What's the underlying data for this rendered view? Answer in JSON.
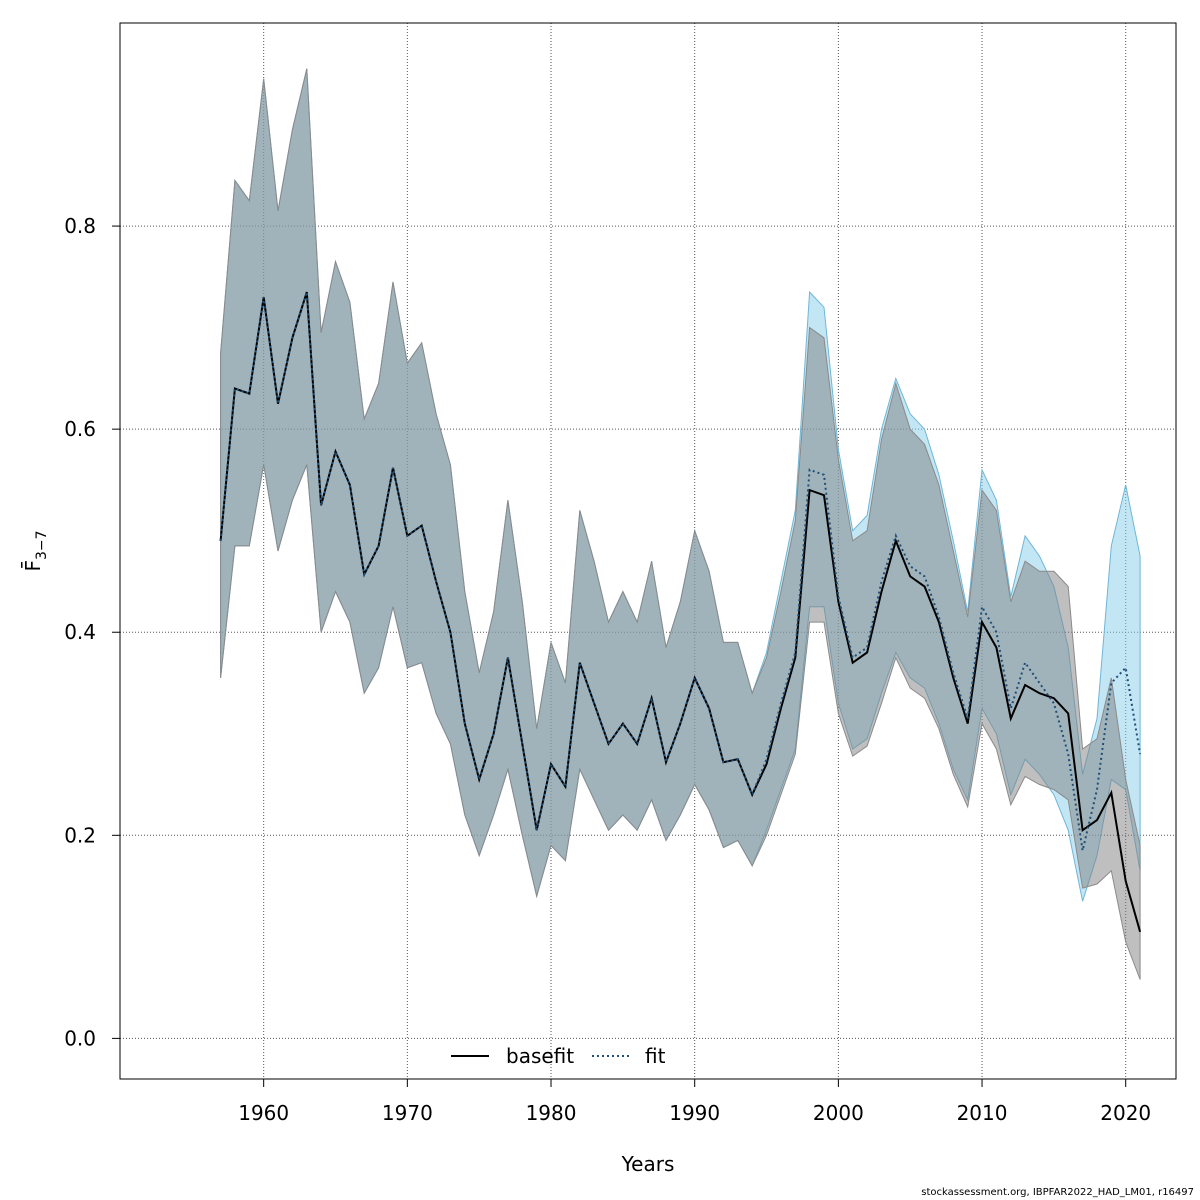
{
  "footer": "stockassessment.org, IBPFAR2022_HAD_LM01, r16497",
  "colors": {
    "basefit_line": "#000000",
    "basefit_band": "#7f7f7f",
    "fit_line": "#1f4e79",
    "fit_band": "#87ceeb",
    "grid": "#555555"
  },
  "chart_data": {
    "type": "line",
    "xlabel": "Years",
    "ylabel": "F̄",
    "ylabel_subscript": "3−7",
    "xlim": [
      1950,
      2023.5
    ],
    "ylim": [
      -0.04,
      1.0
    ],
    "x_ticks": [
      1960,
      1970,
      1980,
      1990,
      2000,
      2010,
      2020
    ],
    "y_ticks": [
      0.0,
      0.2,
      0.4,
      0.6,
      0.8
    ],
    "y_tick_labels": [
      "0.0",
      "0.2",
      "0.4",
      "0.6",
      "0.8"
    ],
    "grid": true,
    "legend": {
      "placement": "bottom-center",
      "entries": [
        "basefit",
        "fit"
      ]
    },
    "x": [
      1957,
      1958,
      1959,
      1960,
      1961,
      1962,
      1963,
      1964,
      1965,
      1966,
      1967,
      1968,
      1969,
      1970,
      1971,
      1972,
      1973,
      1974,
      1975,
      1976,
      1977,
      1978,
      1979,
      1980,
      1981,
      1982,
      1983,
      1984,
      1985,
      1986,
      1987,
      1988,
      1989,
      1990,
      1991,
      1992,
      1993,
      1994,
      1995,
      1996,
      1997,
      1998,
      1999,
      2000,
      2001,
      2002,
      2003,
      2004,
      2005,
      2006,
      2007,
      2008,
      2009,
      2010,
      2011,
      2012,
      2013,
      2014,
      2015,
      2016,
      2017,
      2018,
      2019,
      2020,
      2021
    ],
    "series": [
      {
        "name": "basefit",
        "style": "solid",
        "values": [
          0.49,
          0.64,
          0.635,
          0.73,
          0.625,
          0.69,
          0.735,
          0.525,
          0.578,
          0.545,
          0.457,
          0.485,
          0.562,
          0.495,
          0.505,
          0.45,
          0.4,
          0.31,
          0.255,
          0.3,
          0.375,
          0.29,
          0.205,
          0.27,
          0.248,
          0.37,
          0.33,
          0.29,
          0.31,
          0.29,
          0.335,
          0.272,
          0.31,
          0.355,
          0.325,
          0.272,
          0.275,
          0.24,
          0.27,
          0.325,
          0.375,
          0.54,
          0.535,
          0.43,
          0.37,
          0.38,
          0.44,
          0.49,
          0.455,
          0.445,
          0.41,
          0.355,
          0.31,
          0.41,
          0.385,
          0.315,
          0.348,
          0.34,
          0.335,
          0.32,
          0.205,
          0.215,
          0.242,
          0.155,
          0.105
        ],
        "lower": [
          0.355,
          0.485,
          0.485,
          0.565,
          0.48,
          0.53,
          0.565,
          0.4,
          0.44,
          0.41,
          0.34,
          0.365,
          0.425,
          0.365,
          0.37,
          0.32,
          0.29,
          0.22,
          0.18,
          0.22,
          0.265,
          0.2,
          0.14,
          0.19,
          0.175,
          0.265,
          0.235,
          0.205,
          0.22,
          0.205,
          0.235,
          0.195,
          0.22,
          0.25,
          0.225,
          0.188,
          0.195,
          0.17,
          0.2,
          0.24,
          0.28,
          0.41,
          0.41,
          0.32,
          0.278,
          0.288,
          0.33,
          0.375,
          0.345,
          0.335,
          0.305,
          0.26,
          0.228,
          0.31,
          0.285,
          0.23,
          0.258,
          0.25,
          0.245,
          0.235,
          0.148,
          0.152,
          0.165,
          0.095,
          0.058
        ],
        "upper": [
          0.675,
          0.845,
          0.825,
          0.945,
          0.815,
          0.895,
          0.955,
          0.695,
          0.765,
          0.725,
          0.61,
          0.645,
          0.745,
          0.665,
          0.685,
          0.615,
          0.565,
          0.44,
          0.36,
          0.42,
          0.53,
          0.43,
          0.305,
          0.39,
          0.35,
          0.52,
          0.47,
          0.41,
          0.44,
          0.41,
          0.47,
          0.385,
          0.43,
          0.5,
          0.46,
          0.39,
          0.39,
          0.34,
          0.375,
          0.44,
          0.51,
          0.7,
          0.69,
          0.57,
          0.49,
          0.5,
          0.59,
          0.645,
          0.6,
          0.585,
          0.545,
          0.48,
          0.415,
          0.54,
          0.52,
          0.43,
          0.47,
          0.46,
          0.46,
          0.445,
          0.285,
          0.295,
          0.355,
          0.255,
          0.19
        ]
      },
      {
        "name": "fit",
        "style": "dotted",
        "values": [
          0.49,
          0.64,
          0.635,
          0.73,
          0.625,
          0.69,
          0.735,
          0.525,
          0.578,
          0.545,
          0.457,
          0.485,
          0.562,
          0.495,
          0.505,
          0.45,
          0.4,
          0.31,
          0.255,
          0.3,
          0.375,
          0.29,
          0.205,
          0.27,
          0.248,
          0.37,
          0.33,
          0.29,
          0.31,
          0.29,
          0.335,
          0.272,
          0.31,
          0.355,
          0.325,
          0.272,
          0.275,
          0.24,
          0.275,
          0.33,
          0.38,
          0.56,
          0.555,
          0.435,
          0.375,
          0.385,
          0.45,
          0.495,
          0.465,
          0.455,
          0.415,
          0.36,
          0.315,
          0.425,
          0.4,
          0.325,
          0.37,
          0.35,
          0.33,
          0.28,
          0.185,
          0.245,
          0.35,
          0.365,
          0.28
        ],
        "lower": [
          0.355,
          0.485,
          0.485,
          0.565,
          0.48,
          0.53,
          0.565,
          0.4,
          0.44,
          0.41,
          0.34,
          0.365,
          0.425,
          0.365,
          0.37,
          0.32,
          0.29,
          0.22,
          0.18,
          0.22,
          0.265,
          0.2,
          0.14,
          0.19,
          0.175,
          0.265,
          0.235,
          0.205,
          0.22,
          0.205,
          0.235,
          0.195,
          0.22,
          0.25,
          0.225,
          0.188,
          0.195,
          0.17,
          0.205,
          0.245,
          0.285,
          0.425,
          0.425,
          0.33,
          0.285,
          0.295,
          0.34,
          0.38,
          0.355,
          0.345,
          0.31,
          0.265,
          0.235,
          0.325,
          0.3,
          0.24,
          0.275,
          0.26,
          0.24,
          0.205,
          0.135,
          0.18,
          0.255,
          0.245,
          0.165
        ],
        "upper": [
          0.675,
          0.845,
          0.825,
          0.945,
          0.815,
          0.895,
          0.955,
          0.695,
          0.765,
          0.725,
          0.61,
          0.645,
          0.745,
          0.665,
          0.685,
          0.615,
          0.565,
          0.44,
          0.36,
          0.42,
          0.53,
          0.43,
          0.305,
          0.39,
          0.35,
          0.52,
          0.47,
          0.41,
          0.44,
          0.41,
          0.47,
          0.385,
          0.43,
          0.5,
          0.46,
          0.39,
          0.39,
          0.34,
          0.38,
          0.45,
          0.52,
          0.735,
          0.72,
          0.58,
          0.5,
          0.515,
          0.6,
          0.65,
          0.615,
          0.6,
          0.555,
          0.49,
          0.42,
          0.56,
          0.53,
          0.435,
          0.495,
          0.475,
          0.445,
          0.385,
          0.26,
          0.315,
          0.485,
          0.545,
          0.475
        ]
      }
    ]
  }
}
